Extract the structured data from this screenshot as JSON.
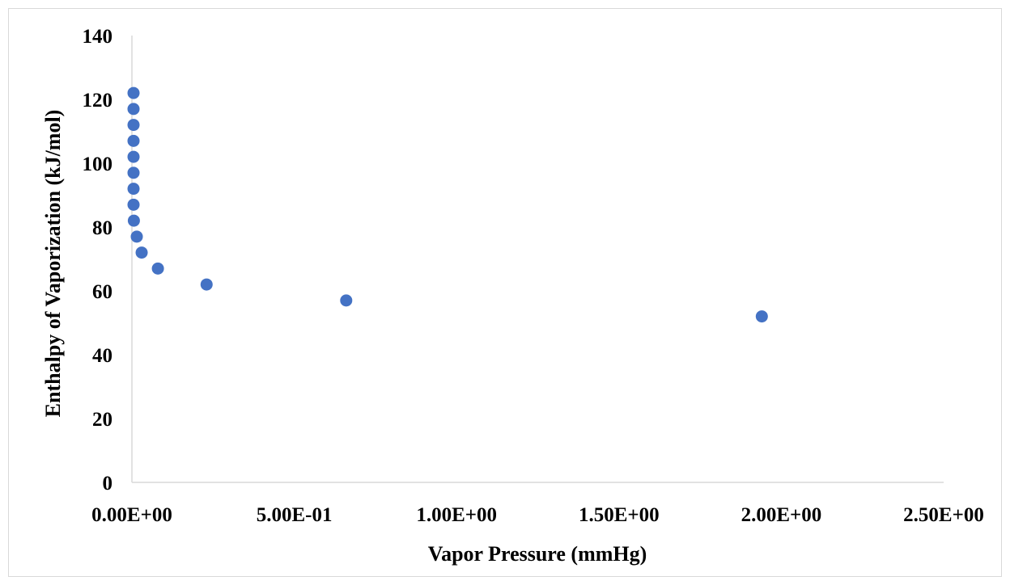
{
  "chart_data": {
    "type": "scatter",
    "title": "",
    "xlabel": "Vapor Pressure (mmHg)",
    "ylabel": "Enthalpy of Vaporization (kJ/mol)",
    "xlim": [
      0,
      2.5
    ],
    "ylim": [
      0,
      140
    ],
    "x_ticks": [
      0,
      0.5,
      1.0,
      1.5,
      2.0,
      2.5
    ],
    "x_tick_labels": [
      "0.00E+00",
      "5.00E-01",
      "1.00E+00",
      "1.50E+00",
      "2.00E+00",
      "2.50E+00"
    ],
    "y_ticks": [
      0,
      20,
      40,
      60,
      80,
      100,
      120,
      140
    ],
    "y_tick_labels": [
      "0",
      "20",
      "40",
      "60",
      "80",
      "100",
      "120",
      "140"
    ],
    "grid": false,
    "marker_color": "#4472C4",
    "series": [
      {
        "points": [
          {
            "x": 0.005,
            "y": 122
          },
          {
            "x": 0.005,
            "y": 117
          },
          {
            "x": 0.005,
            "y": 112
          },
          {
            "x": 0.005,
            "y": 107
          },
          {
            "x": 0.005,
            "y": 102
          },
          {
            "x": 0.005,
            "y": 97
          },
          {
            "x": 0.005,
            "y": 92
          },
          {
            "x": 0.005,
            "y": 87
          },
          {
            "x": 0.006,
            "y": 82
          },
          {
            "x": 0.015,
            "y": 77
          },
          {
            "x": 0.03,
            "y": 72
          },
          {
            "x": 0.08,
            "y": 67
          },
          {
            "x": 0.23,
            "y": 62
          },
          {
            "x": 0.66,
            "y": 57
          },
          {
            "x": 1.94,
            "y": 52
          }
        ]
      }
    ]
  }
}
